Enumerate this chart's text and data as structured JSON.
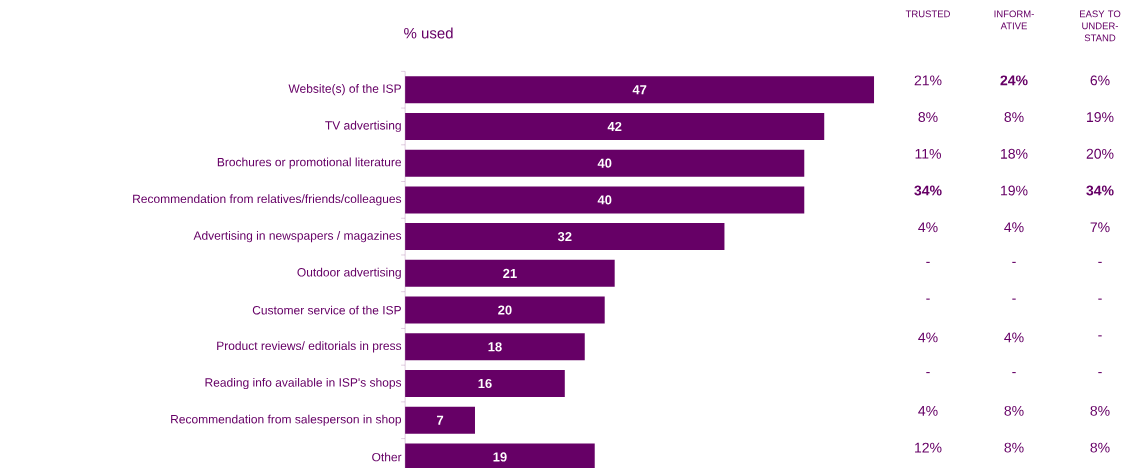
{
  "chart_data": [
    {
      "type": "bar",
      "orientation": "horizontal",
      "title": "% used",
      "data_labels": true,
      "color": "#660066",
      "categories": [
        "Website(s) of the ISP",
        "TV advertising",
        "Brochures or promotional literature",
        "Recommendation from relatives/friends/colleagues",
        "Advertising in newspapers / magazines",
        "Outdoor advertising",
        "Customer service of the ISP",
        "Product reviews/ editorials in press",
        "Reading info available in ISP's shops",
        "Recommendation from salesperson in shop",
        "Other"
      ],
      "values": [
        47,
        42,
        40,
        40,
        32,
        21,
        20,
        18,
        16,
        7,
        19
      ]
    },
    {
      "type": "other",
      "categories": [
        "TRUSTED",
        "INFORM-ATIVE",
        "EASY TO UNDER-STAND"
      ],
      "annotations": [
        "21%",
        "**24%**",
        "6%",
        "8%",
        "8%",
        "19%",
        "11%",
        "18%",
        "20%",
        "**34%**",
        "19%",
        "**34%**",
        "4%",
        "4%",
        "7%",
        "-",
        "-",
        "-",
        "-",
        "-",
        "-",
        "4%",
        "4%",
        "-",
        "-",
        "-",
        "-",
        "4%",
        "8%",
        "8%",
        "12%",
        "8%",
        "8%"
      ]
    }
  ]
}
